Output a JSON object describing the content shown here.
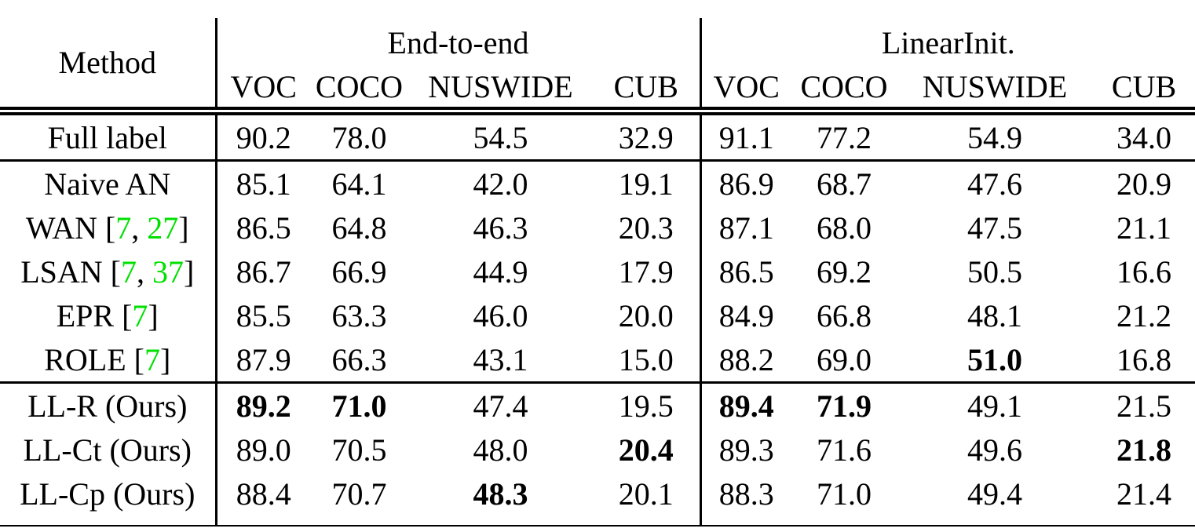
{
  "colors": {
    "citation_green": "#00e000",
    "text": "#000000",
    "background": "#ffffff"
  },
  "table": {
    "method_header": "Method",
    "groups": [
      {
        "label": "End-to-end",
        "columns": [
          "VOC",
          "COCO",
          "NUSWIDE",
          "CUB"
        ]
      },
      {
        "label": "LinearInit.",
        "columns": [
          "VOC",
          "COCO",
          "NUSWIDE",
          "CUB"
        ]
      }
    ],
    "sections": [
      {
        "name": "full-label",
        "rows": [
          {
            "method": [
              {
                "t": "Full label"
              }
            ],
            "values": [
              {
                "v": "90.2"
              },
              {
                "v": "78.0"
              },
              {
                "v": "54.5"
              },
              {
                "v": "32.9"
              },
              {
                "v": "91.1"
              },
              {
                "v": "77.2"
              },
              {
                "v": "54.9"
              },
              {
                "v": "34.0"
              }
            ]
          }
        ]
      },
      {
        "name": "baselines",
        "rows": [
          {
            "method": [
              {
                "t": "Naive AN"
              }
            ],
            "values": [
              {
                "v": "85.1"
              },
              {
                "v": "64.1"
              },
              {
                "v": "42.0"
              },
              {
                "v": "19.1"
              },
              {
                "v": "86.9"
              },
              {
                "v": "68.7"
              },
              {
                "v": "47.6"
              },
              {
                "v": "20.9"
              }
            ]
          },
          {
            "method": [
              {
                "t": "WAN ["
              },
              {
                "t": "7",
                "cite": true
              },
              {
                "t": ", "
              },
              {
                "t": "27",
                "cite": true
              },
              {
                "t": "]"
              }
            ],
            "values": [
              {
                "v": "86.5"
              },
              {
                "v": "64.8"
              },
              {
                "v": "46.3"
              },
              {
                "v": "20.3"
              },
              {
                "v": "87.1"
              },
              {
                "v": "68.0"
              },
              {
                "v": "47.5"
              },
              {
                "v": "21.1"
              }
            ]
          },
          {
            "method": [
              {
                "t": "LSAN ["
              },
              {
                "t": "7",
                "cite": true
              },
              {
                "t": ", "
              },
              {
                "t": "37",
                "cite": true
              },
              {
                "t": "]"
              }
            ],
            "values": [
              {
                "v": "86.7"
              },
              {
                "v": "66.9"
              },
              {
                "v": "44.9"
              },
              {
                "v": "17.9"
              },
              {
                "v": "86.5"
              },
              {
                "v": "69.2"
              },
              {
                "v": "50.5"
              },
              {
                "v": "16.6"
              }
            ]
          },
          {
            "method": [
              {
                "t": "EPR ["
              },
              {
                "t": "7",
                "cite": true
              },
              {
                "t": "]"
              }
            ],
            "values": [
              {
                "v": "85.5"
              },
              {
                "v": "63.3"
              },
              {
                "v": "46.0"
              },
              {
                "v": "20.0"
              },
              {
                "v": "84.9"
              },
              {
                "v": "66.8"
              },
              {
                "v": "48.1"
              },
              {
                "v": "21.2"
              }
            ]
          },
          {
            "method": [
              {
                "t": "ROLE ["
              },
              {
                "t": "7",
                "cite": true
              },
              {
                "t": "]"
              }
            ],
            "values": [
              {
                "v": "87.9"
              },
              {
                "v": "66.3"
              },
              {
                "v": "43.1"
              },
              {
                "v": "15.0"
              },
              {
                "v": "88.2"
              },
              {
                "v": "69.0"
              },
              {
                "v": "51.0",
                "bold": true
              },
              {
                "v": "16.8"
              }
            ]
          }
        ]
      },
      {
        "name": "ours",
        "rows": [
          {
            "method": [
              {
                "t": "LL-R (Ours)"
              }
            ],
            "values": [
              {
                "v": "89.2",
                "bold": true
              },
              {
                "v": "71.0",
                "bold": true
              },
              {
                "v": "47.4"
              },
              {
                "v": "19.5"
              },
              {
                "v": "89.4",
                "bold": true
              },
              {
                "v": "71.9",
                "bold": true
              },
              {
                "v": "49.1"
              },
              {
                "v": "21.5"
              }
            ]
          },
          {
            "method": [
              {
                "t": "LL-Ct (Ours)"
              }
            ],
            "values": [
              {
                "v": "89.0"
              },
              {
                "v": "70.5"
              },
              {
                "v": "48.0"
              },
              {
                "v": "20.4",
                "bold": true
              },
              {
                "v": "89.3"
              },
              {
                "v": "71.6"
              },
              {
                "v": "49.6"
              },
              {
                "v": "21.8",
                "bold": true
              }
            ]
          },
          {
            "method": [
              {
                "t": "LL-Cp (Ours)"
              }
            ],
            "values": [
              {
                "v": "88.4"
              },
              {
                "v": "70.7"
              },
              {
                "v": "48.3",
                "bold": true
              },
              {
                "v": "20.1"
              },
              {
                "v": "88.3"
              },
              {
                "v": "71.0"
              },
              {
                "v": "49.4"
              },
              {
                "v": "21.4"
              }
            ]
          }
        ]
      }
    ]
  }
}
